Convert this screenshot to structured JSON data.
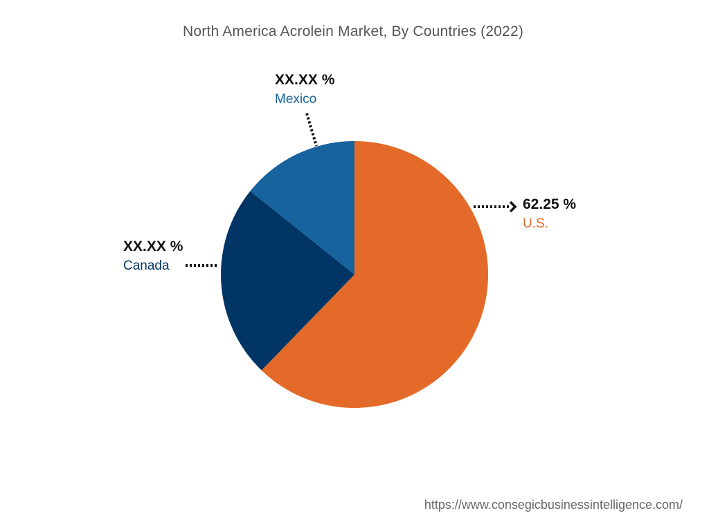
{
  "chart_data": {
    "type": "pie",
    "title": "North America Acrolein Market, By Countries (2022)",
    "slices": [
      {
        "label": "U.S.",
        "value": 62.25,
        "display": "62.25 %",
        "color": "#E36A28"
      },
      {
        "label": "Canada",
        "value": 23.5,
        "display": "XX.XX %",
        "color": "#003566"
      },
      {
        "label": "Mexico",
        "value": 14.25,
        "display": "XX.XX %",
        "color": "#17639E"
      }
    ]
  },
  "source": "https://www.consegicbusinessintelligence.com/"
}
